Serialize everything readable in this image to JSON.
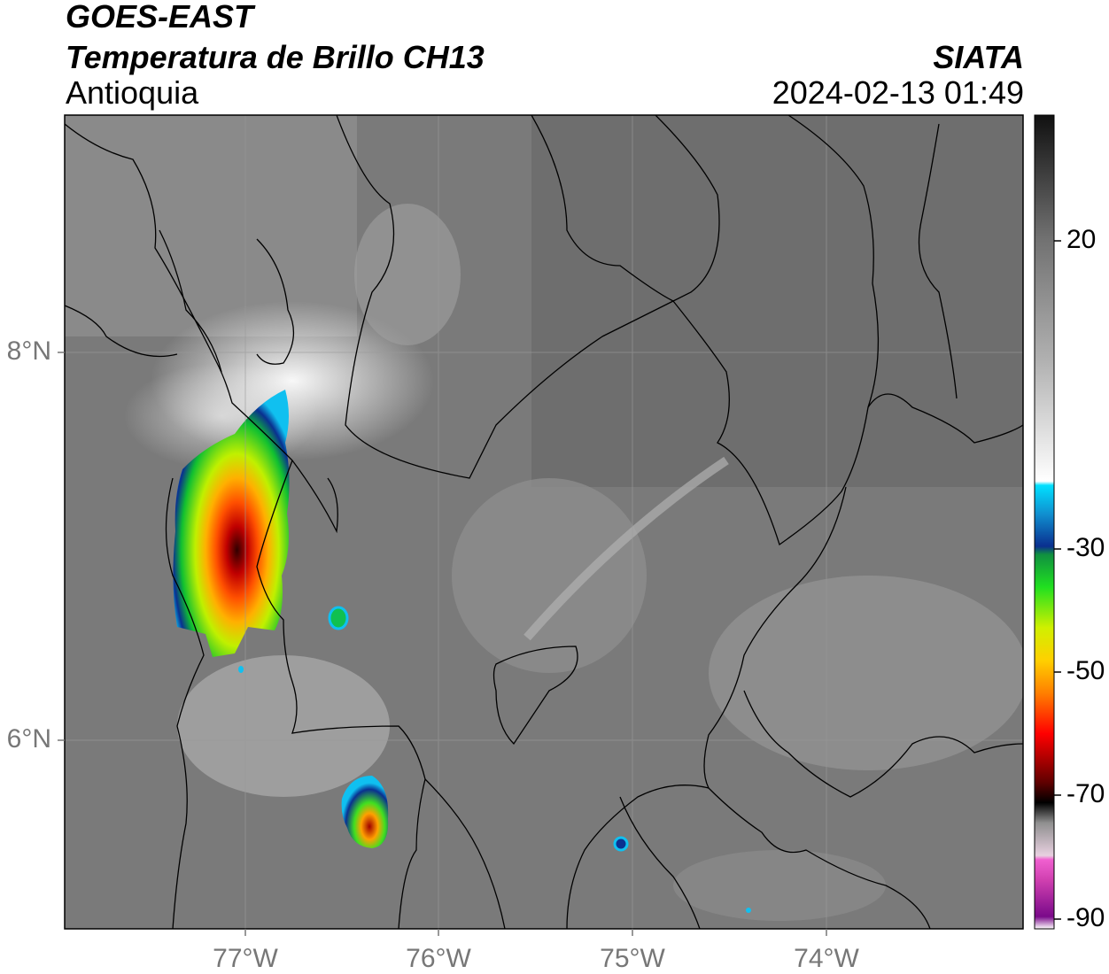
{
  "header": {
    "satellite": "GOES-EAST",
    "product": "Temperatura de Brillo CH13",
    "region": "Antioquia",
    "agency": "SIATA",
    "datetime": "2024-02-13 01:49"
  },
  "map": {
    "lat_labels": [
      "8°N",
      "6°N"
    ],
    "lon_labels": [
      "77°W",
      "76°W",
      "75°W",
      "74°W"
    ]
  },
  "colorbar": {
    "tick_labels": [
      "20",
      "-30",
      "-50",
      "-70",
      "-90"
    ],
    "range": [
      -90,
      40
    ],
    "colors": {
      "warm_gray": "#707070",
      "white": "#f5f5f5",
      "cyan": "#00d0f0",
      "blue": "#0a2f8f",
      "green": "#12b012",
      "yellow": "#f0e000",
      "orange": "#ff8c00",
      "red": "#e00000",
      "dark_red": "#5a0000",
      "black": "#000000",
      "pink": "#e060c0",
      "purple": "#9010a0"
    }
  }
}
